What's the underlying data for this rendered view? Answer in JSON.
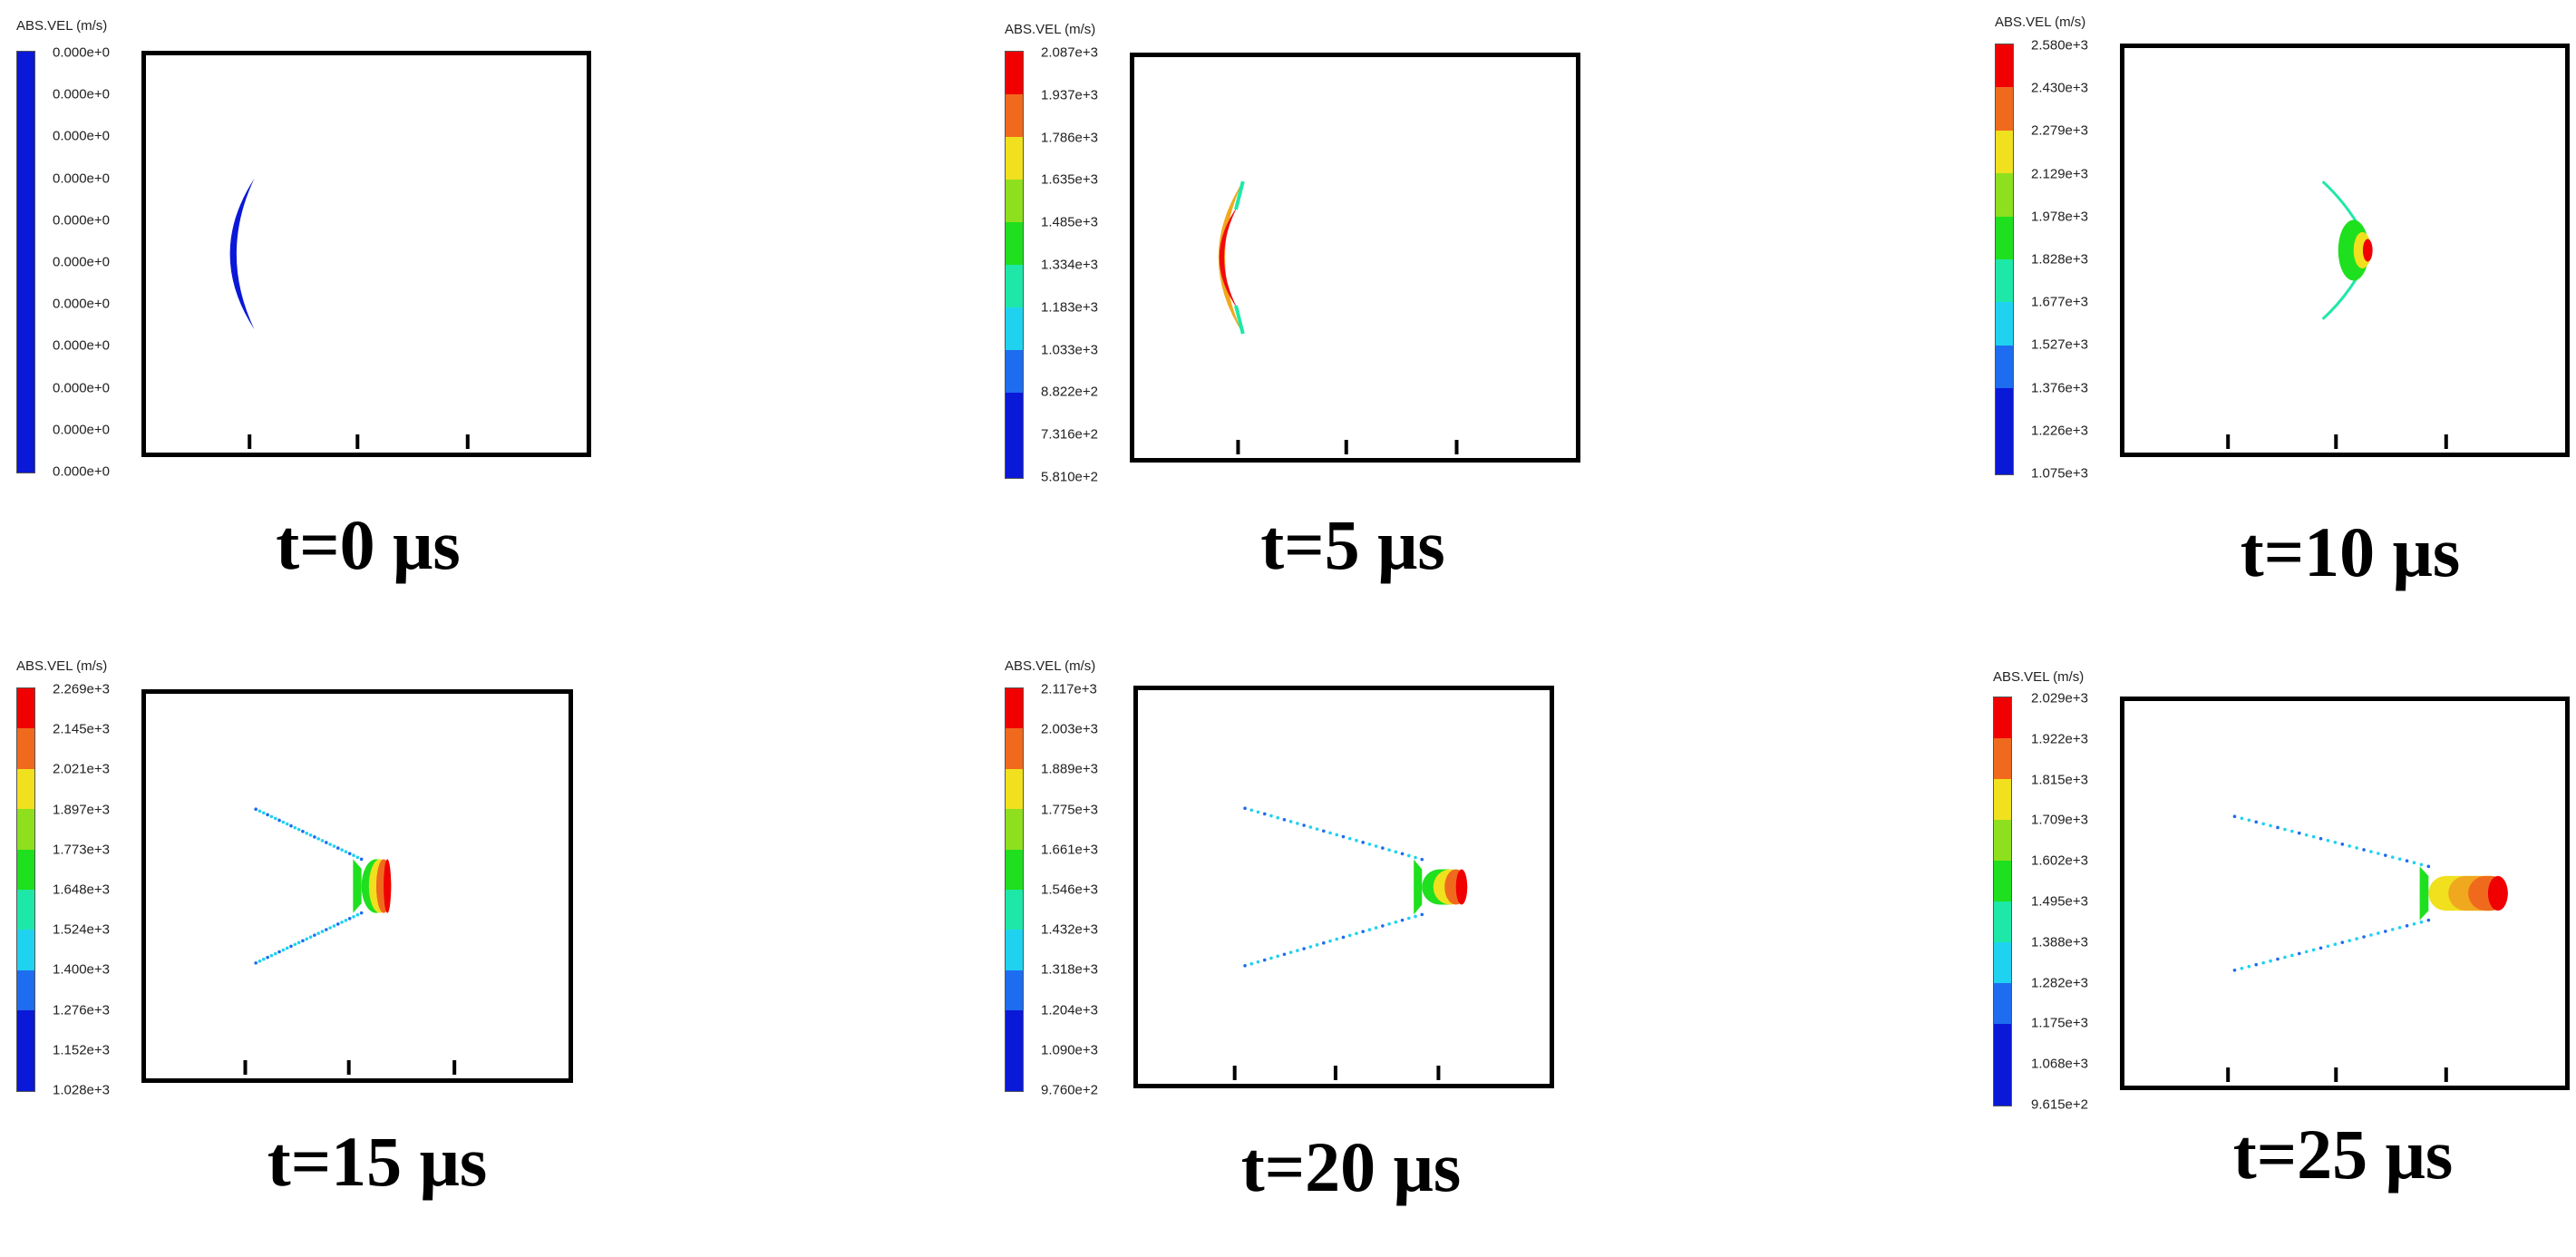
{
  "colors": [
    "#0a18d8",
    "#1e6cf0",
    "#1fd2f0",
    "#1ee8a8",
    "#1ee01e",
    "#8ee01e",
    "#f0e01e",
    "#f0a81e",
    "#f06a1e",
    "#f00a0a",
    "#f00000"
  ],
  "panels": [
    {
      "legend_title": "ABS.VEL (m/s)",
      "ticks": [
        "0.000e+0",
        "0.000e+0",
        "0.000e+0",
        "0.000e+0",
        "0.000e+0",
        "0.000e+0",
        "0.000e+0",
        "0.000e+0",
        "0.000e+0",
        "0.000e+0",
        "0.000e+0"
      ],
      "uniform": true,
      "time_label": "t=0 μs",
      "shape": "arc"
    },
    {
      "legend_title": "ABS.VEL (m/s)",
      "ticks": [
        "2.087e+3",
        "1.937e+3",
        "1.786e+3",
        "1.635e+3",
        "1.485e+3",
        "1.334e+3",
        "1.183e+3",
        "1.033e+3",
        "8.822e+2",
        "7.316e+2",
        "5.810e+2"
      ],
      "uniform": false,
      "time_label": "t=5 μs",
      "shape": "arc-hot"
    },
    {
      "legend_title": "ABS.VEL (m/s)",
      "ticks": [
        "2.580e+3",
        "2.430e+3",
        "2.279e+3",
        "2.129e+3",
        "1.978e+3",
        "1.828e+3",
        "1.677e+3",
        "1.527e+3",
        "1.376e+3",
        "1.226e+3",
        "1.075e+3"
      ],
      "uniform": false,
      "time_label": "t=10 μs",
      "shape": "cone-10"
    },
    {
      "legend_title": "ABS.VEL (m/s)",
      "ticks": [
        "2.269e+3",
        "2.145e+3",
        "2.021e+3",
        "1.897e+3",
        "1.773e+3",
        "1.648e+3",
        "1.524e+3",
        "1.400e+3",
        "1.276e+3",
        "1.152e+3",
        "1.028e+3"
      ],
      "uniform": false,
      "time_label": "t=15 μs",
      "shape": "jet-15"
    },
    {
      "legend_title": "ABS.VEL (m/s)",
      "ticks": [
        "2.117e+3",
        "2.003e+3",
        "1.889e+3",
        "1.775e+3",
        "1.661e+3",
        "1.546e+3",
        "1.432e+3",
        "1.318e+3",
        "1.204e+3",
        "1.090e+3",
        "9.760e+2"
      ],
      "uniform": false,
      "time_label": "t=20 μs",
      "shape": "jet-20"
    },
    {
      "legend_title": "ABS.VEL (m/s)",
      "ticks": [
        "2.029e+3",
        "1.922e+3",
        "1.815e+3",
        "1.709e+3",
        "1.602e+3",
        "1.495e+3",
        "1.388e+3",
        "1.282e+3",
        "1.175e+3",
        "1.068e+3",
        "9.615e+2"
      ],
      "uniform": false,
      "time_label": "t=25 μs",
      "shape": "jet-25"
    }
  ]
}
